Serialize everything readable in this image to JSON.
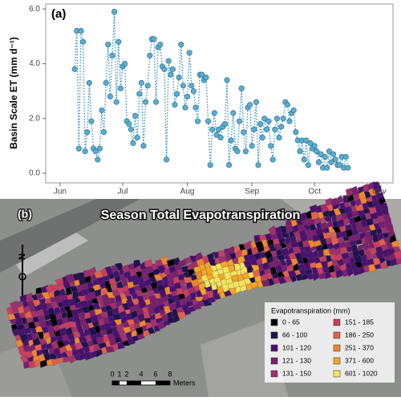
{
  "chart_data": {
    "type": "line",
    "panel_label": "(a)",
    "y_label": "Basin Scale ET (mm d⁻¹)",
    "color": "#5aaed0",
    "line_color": "#2f8fbf",
    "x": [
      159,
      160,
      161,
      162,
      163,
      164,
      165,
      166,
      167,
      168,
      169,
      170,
      171,
      172,
      173,
      174,
      175,
      176,
      177,
      178,
      179,
      180,
      181,
      182,
      183,
      184,
      185,
      186,
      187,
      188,
      189,
      190,
      191,
      192,
      193,
      194,
      195,
      196,
      197,
      198,
      199,
      200,
      201,
      202,
      203,
      204,
      205,
      206,
      207,
      208,
      209,
      210,
      211,
      212,
      213,
      214,
      215,
      216,
      217,
      218,
      219,
      220,
      221,
      222,
      223,
      224,
      225,
      226,
      227,
      228,
      229,
      230,
      231,
      232,
      233,
      234,
      235,
      236,
      237,
      238,
      239,
      240,
      241,
      242,
      243,
      244,
      245,
      246,
      247,
      248,
      249,
      250,
      251,
      252,
      253,
      254,
      255,
      256,
      257,
      258,
      259,
      260,
      261,
      262,
      263,
      264,
      265,
      266,
      267,
      268,
      269,
      270,
      271,
      272,
      273,
      274,
      275,
      276,
      277,
      278,
      279,
      280,
      281,
      282,
      283,
      284,
      285,
      286,
      287,
      288,
      289,
      290
    ],
    "values": [
      3.8,
      5.2,
      0.9,
      5.2,
      4.8,
      0.8,
      1.5,
      3.3,
      1.9,
      0.9,
      0.8,
      0.5,
      0.9,
      2.3,
      1.5,
      3.3,
      4.7,
      2.8,
      4.3,
      5.9,
      2.6,
      4.8,
      3.1,
      3.9,
      4.0,
      1.9,
      1.8,
      1.6,
      1.1,
      2.1,
      1.3,
      2.9,
      3.3,
      1.0,
      2.6,
      3.2,
      4.3,
      4.9,
      4.9,
      2.6,
      4.6,
      4.7,
      3.9,
      3.8,
      0.5,
      4.1,
      3.6,
      3.8,
      2.5,
      2.9,
      3.5,
      4.7,
      3.2,
      2.4,
      2.8,
      4.4,
      3.2,
      3.0,
      2.4,
      1.9,
      3.6,
      3.6,
      3.4,
      3.5,
      1.9,
      0.3,
      1.6,
      2.2,
      1.4,
      1.6,
      1.3,
      1.7,
      1.8,
      3.4,
      0.3,
      1.2,
      2.2,
      0.9,
      0.8,
      1.9,
      3.1,
      1.5,
      0.8,
      2.4,
      2.5,
      1.0,
      1.6,
      2.6,
      0.3,
      1.8,
      1.3,
      2.0,
      1.6,
      1.9,
      1.0,
      0.5,
      1.6,
      2.0,
      1.3,
      1.7,
      2.0,
      2.6,
      2.5,
      1.9,
      2.2,
      2.3,
      1.5,
      1.2,
      0.8,
      1.2,
      0.5,
      1.2,
      0.3,
      1.1,
      0.9,
      1.0,
      0.8,
      0.4,
      0.7,
      0.2,
      0.6,
      0.2,
      0.8,
      0.4,
      0.7,
      0.5,
      0.3,
      0.3,
      0.6,
      0.2,
      0.6,
      0.2
    ],
    "xlim": [
      145.1,
      311.6
    ],
    "xticks": [
      {
        "value": 152,
        "label": "Jun"
      },
      {
        "value": 182,
        "label": "Jul"
      },
      {
        "value": 213,
        "label": "Aug"
      },
      {
        "value": 244,
        "label": "Sep"
      },
      {
        "value": 274,
        "label": "Oct"
      },
      {
        "value": 305,
        "label": "Nov"
      }
    ],
    "ylim": [
      -0.35,
      6.18
    ],
    "yticks": [
      {
        "value": 0,
        "label": "0.0"
      },
      {
        "value": 2,
        "label": "2.0"
      },
      {
        "value": 4,
        "label": "4.0"
      },
      {
        "value": 6,
        "label": "6.0"
      }
    ],
    "grid": false
  },
  "map": {
    "panel_label": "(b)",
    "title": "Season Total Evapotranspiration",
    "north": "N",
    "legend": {
      "title": "Evapotranspiration (mm)",
      "items": [
        {
          "label": "0 - 65",
          "color": "#000004"
        },
        {
          "label": "66 - 100",
          "color": "#221150"
        },
        {
          "label": "101 - 120",
          "color": "#4a1070"
        },
        {
          "label": "121 - 130",
          "color": "#7a1f6e"
        },
        {
          "label": "131 - 150",
          "color": "#a02f6c"
        },
        {
          "label": "151 - 185",
          "color": "#c8405e"
        },
        {
          "label": "186 - 250",
          "color": "#e4604a"
        },
        {
          "label": "251 - 370",
          "color": "#f0862c"
        },
        {
          "label": "371 - 600",
          "color": "#f5a623"
        },
        {
          "label": "601 - 1020",
          "color": "#f4e35c"
        }
      ]
    },
    "scale": {
      "labels": [
        "0",
        "1",
        "2",
        "4",
        "6",
        "8"
      ],
      "unit": "Meters"
    }
  }
}
